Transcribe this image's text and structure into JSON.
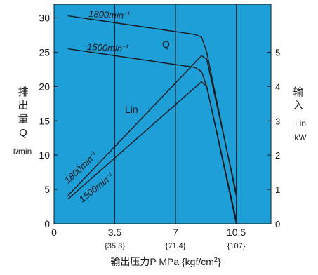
{
  "chart_data": {
    "type": "line",
    "plot_bg": "#1e9fd8",
    "line_color": "#1a1a1a",
    "x_axis": {
      "range": [
        0,
        12.5
      ],
      "ticks": [
        {
          "v": 0,
          "label": "0",
          "sub": ""
        },
        {
          "v": 3.5,
          "label": "3.5",
          "sub": "{35.3}"
        },
        {
          "v": 7,
          "label": "7",
          "sub": "{71.4}"
        },
        {
          "v": 10.5,
          "label": "10.5",
          "sub": "{107}"
        }
      ],
      "label": "输出压力P  MPa {kgf/cm",
      "label_sup": "2",
      "label_tail": "}"
    },
    "y_left": {
      "range": [
        0,
        32
      ],
      "ticks": [
        0,
        5,
        10,
        15,
        20,
        25,
        30
      ],
      "label_lines": [
        "排",
        "出",
        "量",
        "Q"
      ],
      "unit": "ℓ/min"
    },
    "y_right": {
      "range": [
        0,
        6.4
      ],
      "ticks": [
        0,
        1,
        2,
        3,
        4,
        5
      ],
      "label_lines": [
        "输",
        "入"
      ],
      "unit_lines": [
        "Lin",
        "kW"
      ]
    },
    "series": [
      {
        "name": "Q 1800min⁻¹",
        "axis": "left",
        "points": [
          [
            0.8,
            30.3
          ],
          [
            8.1,
            27.6
          ],
          [
            8.5,
            27.2
          ],
          [
            8.8,
            25.0
          ],
          [
            10.5,
            4.0
          ]
        ]
      },
      {
        "name": "Q 1500min⁻¹",
        "axis": "left",
        "points": [
          [
            0.8,
            25.5
          ],
          [
            8.1,
            22.8
          ],
          [
            8.5,
            22.2
          ],
          [
            8.8,
            20.0
          ],
          [
            10.5,
            0.5
          ]
        ]
      },
      {
        "name": "Lin 1800min⁻¹",
        "axis": "right",
        "points": [
          [
            0.8,
            0.82
          ],
          [
            8.5,
            4.9
          ],
          [
            8.8,
            4.8
          ],
          [
            10.5,
            0.9
          ]
        ]
      },
      {
        "name": "Lin 1500min⁻¹",
        "axis": "right",
        "points": [
          [
            0.8,
            0.72
          ],
          [
            8.5,
            4.14
          ],
          [
            8.8,
            4.0
          ],
          [
            10.5,
            0.0
          ]
        ]
      }
    ],
    "annotations": {
      "q_1800": "1800min",
      "q_1500": "1500min",
      "q_label": "Q",
      "lin_label": "Lin",
      "lin_1800": "1800min",
      "lin_1500": "1500min",
      "sup": "−1"
    }
  }
}
